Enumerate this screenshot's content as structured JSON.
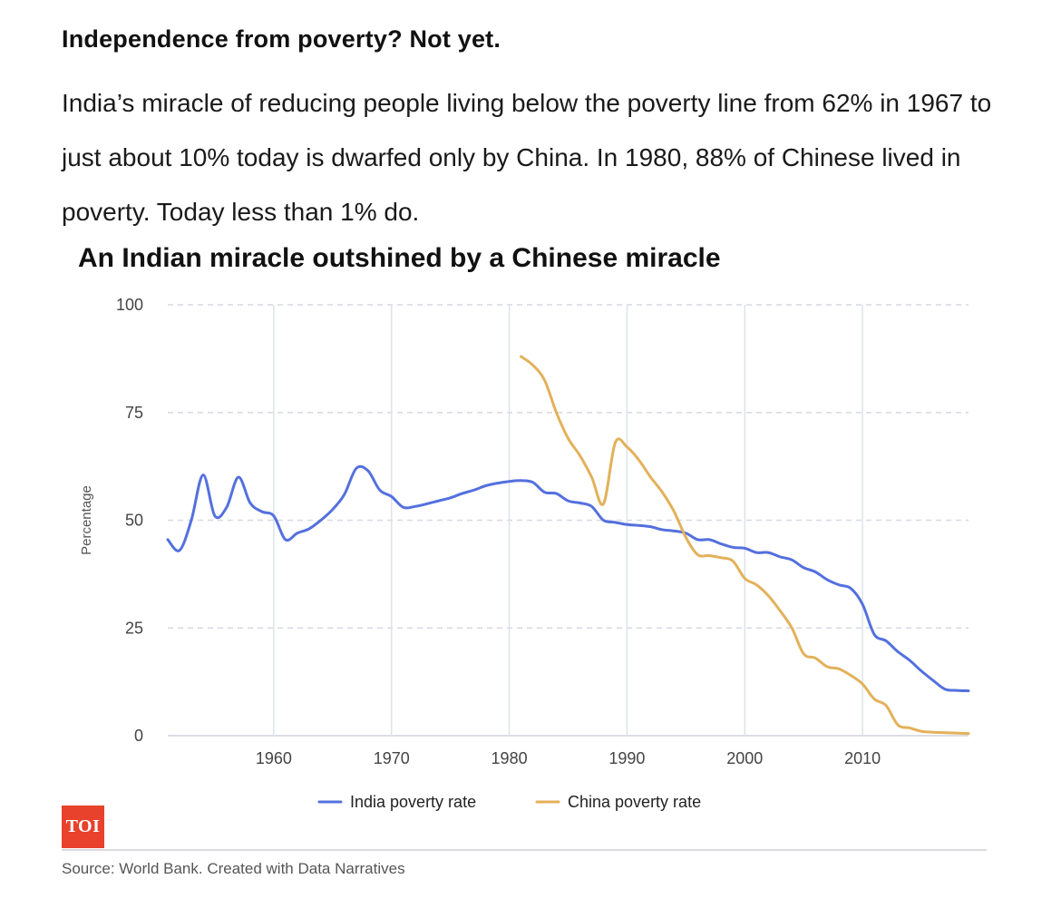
{
  "headline": "Independence from poverty? Not yet.",
  "description": "India’s miracle of reducing people living below the poverty line from 62% in 1967 to just about 10% today is dwarfed only by China. In 1980, 88% of Chinese lived in poverty. Today less than 1% do.",
  "logo_text": "TOI",
  "source": "Source: World Bank. Created with Data Narratives",
  "chart_data": {
    "type": "line",
    "title": "An Indian miracle outshined by a Chinese miracle",
    "ylabel": "Percentage",
    "xlabel": "",
    "xlim": [
      1951,
      2019
    ],
    "ylim": [
      0,
      100
    ],
    "x_ticks": [
      1960,
      1970,
      1980,
      1990,
      2000,
      2010
    ],
    "y_ticks": [
      0,
      25,
      50,
      75,
      100
    ],
    "grid": true,
    "legend_position": "bottom-center",
    "series": [
      {
        "name": "India poverty rate",
        "color": "#5470de",
        "x": [
          1951,
          1952,
          1953,
          1954,
          1955,
          1956,
          1957,
          1958,
          1959,
          1960,
          1961,
          1962,
          1963,
          1964,
          1965,
          1966,
          1967,
          1968,
          1969,
          1970,
          1971,
          1972,
          1973,
          1974,
          1975,
          1976,
          1977,
          1978,
          1979,
          1980,
          1981,
          1982,
          1983,
          1984,
          1985,
          1986,
          1987,
          1988,
          1989,
          1990,
          1991,
          1992,
          1993,
          1994,
          1995,
          1996,
          1997,
          1998,
          1999,
          2000,
          2001,
          2002,
          2003,
          2004,
          2005,
          2006,
          2007,
          2008,
          2009,
          2010,
          2011,
          2012,
          2013,
          2014,
          2015,
          2016,
          2017,
          2018,
          2019
        ],
        "values": [
          45.5,
          43,
          50,
          60.5,
          51,
          53,
          60,
          54,
          52,
          51,
          45.5,
          47,
          48,
          50,
          52.5,
          56,
          62,
          61.5,
          57,
          55.5,
          53,
          53.2,
          53.8,
          54.5,
          55.2,
          56.2,
          57,
          58,
          58.6,
          59,
          59.2,
          58.8,
          56.5,
          56.2,
          54.5,
          54,
          53.2,
          50,
          49.5,
          49,
          48.8,
          48.5,
          47.8,
          47.5,
          47,
          45.5,
          45.5,
          44.5,
          43.7,
          43.5,
          42.5,
          42.5,
          41.5,
          40.8,
          39,
          38,
          36.2,
          35,
          34.2,
          30.5,
          23.5,
          22,
          19.5,
          17.5,
          15,
          12.8,
          10.8,
          10.5,
          10.4
        ]
      },
      {
        "name": "China poverty rate",
        "color": "#e3b15a",
        "x": [
          1981,
          1982,
          1983,
          1984,
          1985,
          1986,
          1987,
          1988,
          1989,
          1990,
          1991,
          1992,
          1993,
          1994,
          1995,
          1996,
          1997,
          1998,
          1999,
          2000,
          2001,
          2002,
          2003,
          2004,
          2005,
          2006,
          2007,
          2008,
          2009,
          2010,
          2011,
          2012,
          2013,
          2014,
          2015,
          2016,
          2017,
          2018,
          2019
        ],
        "values": [
          88,
          86,
          82.5,
          75,
          69,
          65,
          60,
          53.8,
          68,
          67,
          64,
          60,
          56.5,
          52,
          46,
          42,
          41.8,
          41.3,
          40.5,
          36.5,
          35,
          32.5,
          29,
          25,
          19,
          18,
          16,
          15.5,
          14,
          12,
          8.5,
          7,
          2.5,
          1.8,
          1,
          0.8,
          0.7,
          0.6,
          0.5
        ]
      }
    ]
  }
}
